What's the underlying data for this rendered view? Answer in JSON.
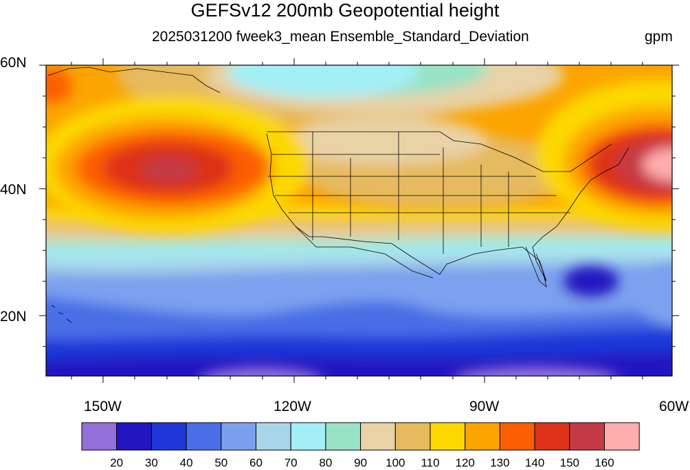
{
  "title": "GEFSv12 200mb Geopotential height",
  "subtitle": "2025031200 fweek3_mean Ensemble_Standard_Deviation",
  "units": "gpm",
  "lat_labels": [
    "60N",
    "40N",
    "20N"
  ],
  "lon_labels": [
    "150W",
    "120W",
    "90W",
    "60W"
  ],
  "colorbar": {
    "colors": [
      "#9370db",
      "#2316c0",
      "#1f37d8",
      "#4a6ee6",
      "#7ba1ee",
      "#a8d6e8",
      "#a4eef6",
      "#98e2c6",
      "#e8d2a6",
      "#e6ba5e",
      "#fcd800",
      "#fca400",
      "#fc5f00",
      "#dc3218",
      "#c43a44",
      "#ffadad"
    ],
    "labels": [
      "20",
      "30",
      "40",
      "50",
      "60",
      "70",
      "80",
      "90",
      "100",
      "110",
      "120",
      "130",
      "140",
      "150",
      "160"
    ]
  },
  "map_regions": [
    "Pacific Ocean",
    "United States",
    "Mexico",
    "Canada",
    "Gulf of Mexico",
    "Atlantic Ocean",
    "Hawaii"
  ]
}
